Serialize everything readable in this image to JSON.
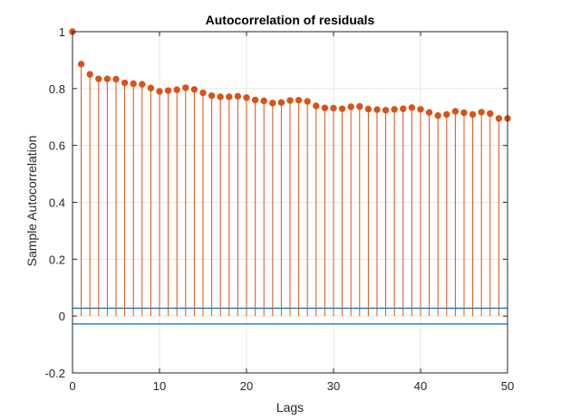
{
  "chart_data": {
    "type": "stem",
    "title": "Autocorrelation of residuals",
    "xlabel": "Lags",
    "ylabel": "Sample Autocorrelation",
    "xlim": [
      0,
      50
    ],
    "ylim": [
      -0.2,
      1
    ],
    "xticks": [
      "0",
      "10",
      "20",
      "30",
      "40",
      "50"
    ],
    "yticks": [
      "-0.2",
      "0",
      "0.2",
      "0.4",
      "0.6",
      "0.8",
      "1"
    ],
    "grid": true,
    "lags": [
      0,
      1,
      2,
      3,
      4,
      5,
      6,
      7,
      8,
      9,
      10,
      11,
      12,
      13,
      14,
      15,
      16,
      17,
      18,
      19,
      20,
      21,
      22,
      23,
      24,
      25,
      26,
      27,
      28,
      29,
      30,
      31,
      32,
      33,
      34,
      35,
      36,
      37,
      38,
      39,
      40,
      41,
      42,
      43,
      44,
      45,
      46,
      47,
      48,
      49,
      50
    ],
    "values": [
      1.0,
      0.886,
      0.85,
      0.834,
      0.834,
      0.833,
      0.82,
      0.817,
      0.815,
      0.802,
      0.79,
      0.793,
      0.796,
      0.803,
      0.797,
      0.785,
      0.775,
      0.771,
      0.771,
      0.773,
      0.768,
      0.76,
      0.757,
      0.749,
      0.751,
      0.758,
      0.759,
      0.755,
      0.739,
      0.732,
      0.731,
      0.729,
      0.736,
      0.737,
      0.728,
      0.726,
      0.724,
      0.727,
      0.729,
      0.733,
      0.727,
      0.716,
      0.705,
      0.709,
      0.72,
      0.715,
      0.709,
      0.717,
      0.712,
      0.695,
      0.695
    ],
    "confidence_bounds": [
      0.0277,
      -0.0277
    ],
    "colors": {
      "stem": "#d95319",
      "bounds": "#0072bd",
      "grid": "#e6e6e6",
      "axis": "#262626"
    }
  }
}
